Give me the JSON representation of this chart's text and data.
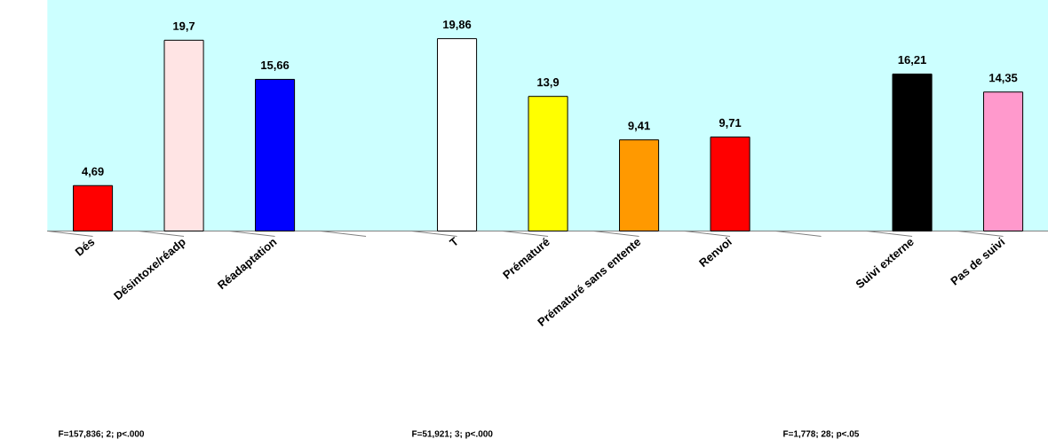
{
  "chart_data": {
    "type": "bar",
    "categories": [
      "Dés",
      "Désintoxe/réadp",
      "Réadaptation",
      null,
      "T",
      "Prématuré",
      "Prématuré sans entente",
      "Renvoi",
      null,
      "Suivi externe",
      "Pas de suivi"
    ],
    "values": [
      4.69,
      19.7,
      15.66,
      null,
      19.86,
      13.9,
      9.41,
      9.71,
      null,
      16.21,
      14.35
    ],
    "value_labels": [
      "4,69",
      "19,7",
      "15,66",
      null,
      "19,86",
      "13,9",
      "9,41",
      "9,71",
      null,
      "16,21",
      "14,35"
    ],
    "colors": [
      "#ff0000",
      "#ffe4e4",
      "#0000ff",
      null,
      "#ffffff",
      "#ffff00",
      "#ff9900",
      "#ff0000",
      null,
      "#000000",
      "#ff99cc"
    ],
    "ylim": [
      0,
      25
    ],
    "tick_labels": "x",
    "annotations": [
      "F=157,836; 2; p<.000",
      "F=51,921; 3; p<.000",
      "F=1,778; 28; p<.05"
    ]
  }
}
